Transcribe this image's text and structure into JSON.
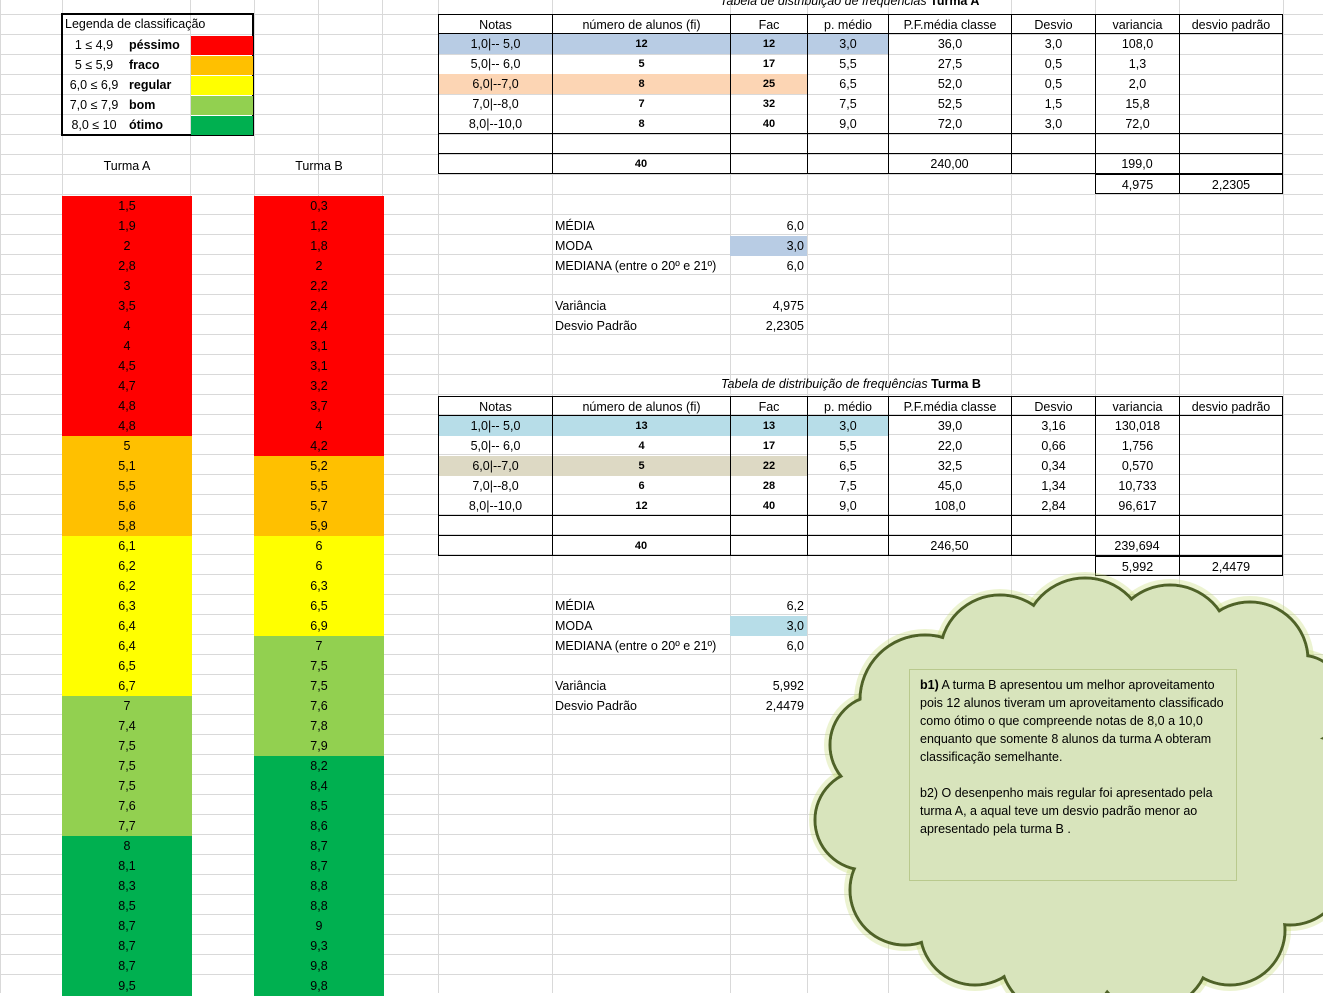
{
  "colors": {
    "pessimo": "#ff0000",
    "fraco": "#ffc000",
    "regular": "#ffff00",
    "bom": "#92d050",
    "otimo": "#00b050",
    "highlight_blue_a": "#b8cce4",
    "highlight_peach": "#fcd5b4",
    "highlight_blue_b": "#b7dde8",
    "highlight_tan": "#ddd9c4",
    "cloud_fill": "#d8e4bc",
    "cloud_stroke": "#4f6228",
    "gridline": "#d9d9d9"
  },
  "legend": {
    "title": "Legenda de classificação",
    "rows": [
      {
        "range": "1 ≤ 4,9",
        "label": "péssimo",
        "color": "pessimo"
      },
      {
        "range": "5 ≤ 5,9",
        "label": "fraco",
        "color": "fraco"
      },
      {
        "range": "6,0 ≤ 6,9",
        "label": "regular",
        "color": "regular"
      },
      {
        "range": "7,0 ≤ 7,9",
        "label": "bom",
        "color": "bom"
      },
      {
        "range": "8,0 ≤ 10",
        "label": "ótimo",
        "color": "otimo"
      }
    ]
  },
  "turma_a": {
    "header": "Turma A",
    "grades": [
      "1,5",
      "1,9",
      "2",
      "2,8",
      "3",
      "3,5",
      "4",
      "4",
      "4,5",
      "4,7",
      "4,8",
      "4,8",
      "5",
      "5,1",
      "5,5",
      "5,6",
      "5,8",
      "6,1",
      "6,2",
      "6,2",
      "6,3",
      "6,4",
      "6,4",
      "6,5",
      "6,7",
      "7",
      "7,4",
      "7,5",
      "7,5",
      "7,5",
      "7,6",
      "7,7",
      "8",
      "8,1",
      "8,3",
      "8,5",
      "8,7",
      "8,7",
      "8,7",
      "9,5"
    ],
    "classes": [
      "pessimo",
      "pessimo",
      "pessimo",
      "pessimo",
      "pessimo",
      "pessimo",
      "pessimo",
      "pessimo",
      "pessimo",
      "pessimo",
      "pessimo",
      "pessimo",
      "fraco",
      "fraco",
      "fraco",
      "fraco",
      "fraco",
      "regular",
      "regular",
      "regular",
      "regular",
      "regular",
      "regular",
      "regular",
      "regular",
      "bom",
      "bom",
      "bom",
      "bom",
      "bom",
      "bom",
      "bom",
      "otimo",
      "otimo",
      "otimo",
      "otimo",
      "otimo",
      "otimo",
      "otimo",
      "otimo"
    ]
  },
  "turma_b": {
    "header": "Turma B",
    "grades": [
      "0,3",
      "1,2",
      "1,8",
      "2",
      "2,2",
      "2,4",
      "2,4",
      "3,1",
      "3,1",
      "3,2",
      "3,7",
      "4",
      "4,2",
      "5,2",
      "5,5",
      "5,7",
      "5,9",
      "6",
      "6",
      "6,3",
      "6,5",
      "6,9",
      "7",
      "7,5",
      "7,5",
      "7,6",
      "7,8",
      "7,9",
      "8,2",
      "8,4",
      "8,5",
      "8,6",
      "8,7",
      "8,7",
      "8,8",
      "8,8",
      "9",
      "9,3",
      "9,8",
      "9,8"
    ],
    "classes": [
      "pessimo",
      "pessimo",
      "pessimo",
      "pessimo",
      "pessimo",
      "pessimo",
      "pessimo",
      "pessimo",
      "pessimo",
      "pessimo",
      "pessimo",
      "pessimo",
      "pessimo",
      "fraco",
      "fraco",
      "fraco",
      "fraco",
      "regular",
      "regular",
      "regular",
      "regular",
      "regular",
      "bom",
      "bom",
      "bom",
      "bom",
      "bom",
      "bom",
      "otimo",
      "otimo",
      "otimo",
      "otimo",
      "otimo",
      "otimo",
      "otimo",
      "otimo",
      "otimo",
      "otimo",
      "otimo",
      "otimo"
    ]
  },
  "table_a": {
    "caption_prefix": "Tabela de distribuição de frequências",
    "caption_name": "Turma A",
    "headers": [
      "Notas",
      "número de alunos (fi)",
      "Fac",
      "p. médio",
      "P.F.média classe",
      "Desvio",
      "variancia",
      "desvio padrão"
    ],
    "rows": [
      {
        "notas": "1,0|-- 5,0",
        "fi": "12",
        "fac": "12",
        "pm": "3,0",
        "pf": "36,0",
        "desvio": "3,0",
        "var": "108,0",
        "dp": ""
      },
      {
        "notas": "5,0|-- 6,0",
        "fi": "5",
        "fac": "17",
        "pm": "5,5",
        "pf": "27,5",
        "desvio": "0,5",
        "var": "1,3",
        "dp": ""
      },
      {
        "notas": "6,0|--7,0",
        "fi": "8",
        "fac": "25",
        "pm": "6,5",
        "pf": "52,0",
        "desvio": "0,5",
        "var": "2,0",
        "dp": ""
      },
      {
        "notas": "7,0|--8,0",
        "fi": "7",
        "fac": "32",
        "pm": "7,5",
        "pf": "52,5",
        "desvio": "1,5",
        "var": "15,8",
        "dp": ""
      },
      {
        "notas": "8,0|--10,0",
        "fi": "8",
        "fac": "40",
        "pm": "9,0",
        "pf": "72,0",
        "desvio": "3,0",
        "var": "72,0",
        "dp": ""
      }
    ],
    "total_fi": "40",
    "total_pf": "240,00",
    "total_var": "199,0",
    "final_var": "4,975",
    "final_dp": "2,2305",
    "stats": [
      {
        "label": "MÉDIA",
        "value": "6,0"
      },
      {
        "label": "MODA",
        "value": "3,0"
      },
      {
        "label": "MEDIANA (entre o 20º e 21º)",
        "value": "6,0"
      },
      {
        "label": "Variância",
        "value": "4,975"
      },
      {
        "label": "Desvio Padrão",
        "value": "2,2305"
      }
    ]
  },
  "table_b": {
    "caption_prefix": "Tabela de distribuição de frequências",
    "caption_name": "Turma B",
    "headers": [
      "Notas",
      "número de alunos (fi)",
      "Fac",
      "p. médio",
      "P.F.média classe",
      "Desvio",
      "variancia",
      "desvio padrão"
    ],
    "rows": [
      {
        "notas": "1,0|-- 5,0",
        "fi": "13",
        "fac": "13",
        "pm": "3,0",
        "pf": "39,0",
        "desvio": "3,16",
        "var": "130,018",
        "dp": ""
      },
      {
        "notas": "5,0|-- 6,0",
        "fi": "4",
        "fac": "17",
        "pm": "5,5",
        "pf": "22,0",
        "desvio": "0,66",
        "var": "1,756",
        "dp": ""
      },
      {
        "notas": "6,0|--7,0",
        "fi": "5",
        "fac": "22",
        "pm": "6,5",
        "pf": "32,5",
        "desvio": "0,34",
        "var": "0,570",
        "dp": ""
      },
      {
        "notas": "7,0|--8,0",
        "fi": "6",
        "fac": "28",
        "pm": "7,5",
        "pf": "45,0",
        "desvio": "1,34",
        "var": "10,733",
        "dp": ""
      },
      {
        "notas": "8,0|--10,0",
        "fi": "12",
        "fac": "40",
        "pm": "9,0",
        "pf": "108,0",
        "desvio": "2,84",
        "var": "96,617",
        "dp": ""
      }
    ],
    "total_fi": "40",
    "total_pf": "246,50",
    "total_var": "239,694",
    "final_var": "5,992",
    "final_dp": "2,4479",
    "stats": [
      {
        "label": "MÉDIA",
        "value": "6,2"
      },
      {
        "label": "MODA",
        "value": "3,0"
      },
      {
        "label": "MEDIANA (entre o 20º e 21º)",
        "value": "6,0"
      },
      {
        "label": "Variância",
        "value": "5,992"
      },
      {
        "label": "Desvio Padrão",
        "value": "2,4479"
      }
    ]
  },
  "note": {
    "b1_prefix": "b1)",
    "b1_text": " A turma B apresentou um melhor aproveitamento pois 12 alunos tiveram um aproveitamento classificado como ótimo o que compreende notas de 8,0 a 10,0  enquanto que somente 8 alunos da turma A obteram classificação semelhante.",
    "b2_text": "b2) O desenpenho mais regular foi apresentado pela turma A, a aqual teve um desvio padrão menor ao apresentado pela turma B ."
  }
}
